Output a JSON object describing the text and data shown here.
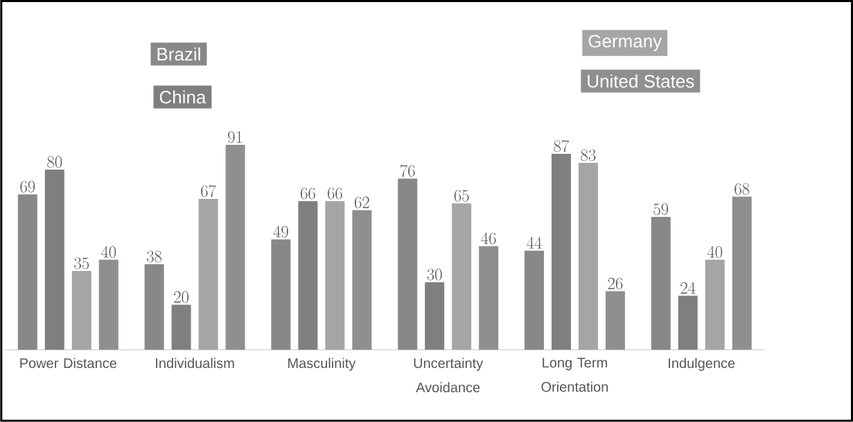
{
  "chart_data": {
    "type": "bar",
    "categories": [
      "Power Distance",
      "Individualism",
      "Masculinity",
      "Uncertainty Avoidance",
      "Long Term Orientation",
      "Indulgence"
    ],
    "series": [
      {
        "name": "Brazil",
        "color": "#888888",
        "values": [
          69,
          38,
          49,
          76,
          44,
          59
        ]
      },
      {
        "name": "China",
        "color": "#7f7f7f",
        "values": [
          80,
          20,
          66,
          30,
          87,
          24
        ]
      },
      {
        "name": "Germany",
        "color": "#a5a5a5",
        "values": [
          35,
          67,
          66,
          65,
          83,
          40
        ]
      },
      {
        "name": "United States",
        "color": "#8f8f8f",
        "values": [
          40,
          91,
          62,
          46,
          26,
          68
        ]
      }
    ],
    "data_labels": true,
    "legend": "top",
    "grid": false
  }
}
